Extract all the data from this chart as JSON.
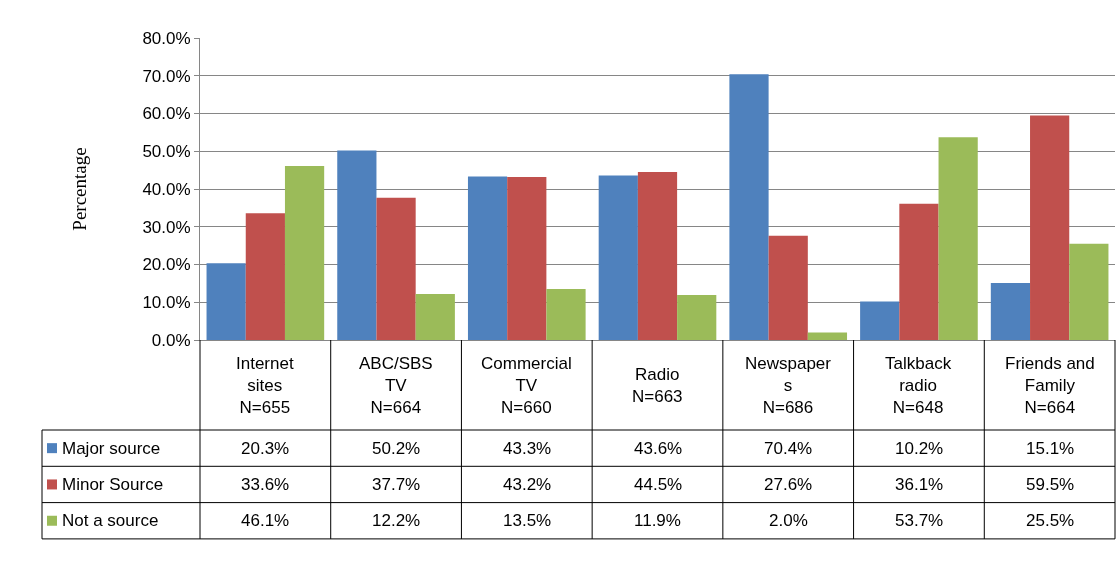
{
  "chart_data": {
    "type": "bar",
    "ylabel": "Percentage",
    "categories": [
      "Internet\nsites\nN=655",
      "ABC/SBS\nTV\nN=664",
      "Commercial\nTV\nN=660",
      "Radio\nN=663",
      "Newspaper\ns\nN=686",
      "Talkback\nradio\nN=648",
      "Friends and\nFamily\nN=664"
    ],
    "series": [
      {
        "name": "Major source",
        "color": "#4f81bd",
        "values": [
          20.3,
          50.2,
          43.3,
          43.6,
          70.4,
          10.2,
          15.1
        ],
        "value_labels": [
          "20.3%",
          "50.2%",
          "43.3%",
          "43.6%",
          "70.4%",
          "10.2%",
          "15.1%"
        ]
      },
      {
        "name": "Minor Source",
        "color": "#c0504d",
        "values": [
          33.6,
          37.7,
          43.2,
          44.5,
          27.6,
          36.1,
          59.5
        ],
        "value_labels": [
          "33.6%",
          "37.7%",
          "43.2%",
          "44.5%",
          "27.6%",
          "36.1%",
          "59.5%"
        ]
      },
      {
        "name": "Not a source",
        "color": "#9bbb59",
        "values": [
          46.1,
          12.2,
          13.5,
          11.9,
          2.0,
          53.7,
          25.5
        ],
        "value_labels": [
          "46.1%",
          "12.2%",
          "13.5%",
          "11.9%",
          "2.0%",
          "53.7%",
          "25.5%"
        ]
      }
    ],
    "ylim": [
      0,
      80
    ],
    "yticks": [
      {
        "value": 0,
        "label": "0.0%"
      },
      {
        "value": 10,
        "label": "10.0%"
      },
      {
        "value": 20,
        "label": "20.0%"
      },
      {
        "value": 30,
        "label": "30.0%"
      },
      {
        "value": 40,
        "label": "40.0%"
      },
      {
        "value": 50,
        "label": "50.0%"
      },
      {
        "value": 60,
        "label": "60.0%"
      },
      {
        "value": 70,
        "label": "70.0%"
      },
      {
        "value": 80,
        "label": "80.0%"
      }
    ],
    "grid": "y",
    "legend": "left"
  }
}
